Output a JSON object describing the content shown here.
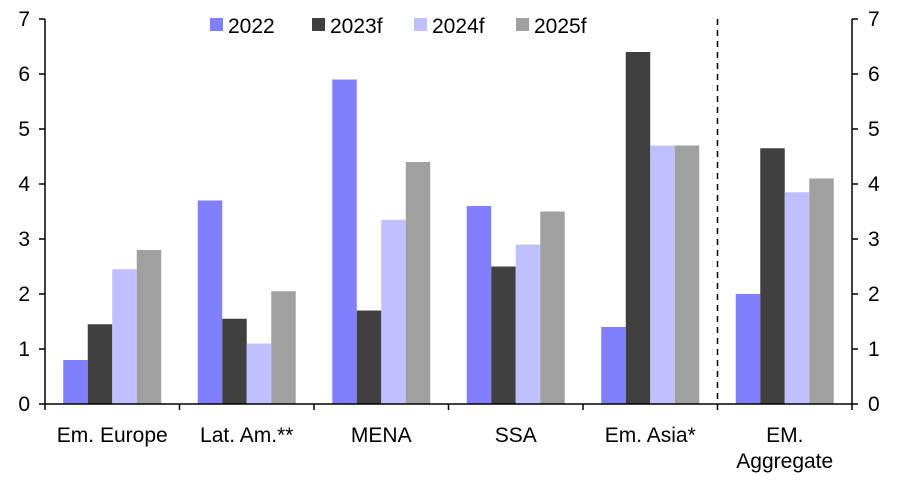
{
  "chart_data": {
    "type": "bar",
    "categories": [
      [
        "Em. Europe"
      ],
      [
        "Lat. Am.**"
      ],
      [
        "MENA"
      ],
      [
        "SSA"
      ],
      [
        "Em. Asia*"
      ],
      [
        "EM.",
        "Aggregate"
      ]
    ],
    "series": [
      {
        "name": "2022",
        "color": "#8080ff",
        "values": [
          0.8,
          3.7,
          5.9,
          3.6,
          1.4,
          2.0
        ]
      },
      {
        "name": "2023f",
        "color": "#404040",
        "values": [
          1.45,
          1.55,
          1.7,
          2.5,
          6.4,
          4.65
        ]
      },
      {
        "name": "2024f",
        "color": "#c0c0ff",
        "values": [
          2.45,
          1.1,
          3.35,
          2.9,
          4.7,
          3.85
        ]
      },
      {
        "name": "2025f",
        "color": "#a0a0a0",
        "values": [
          2.8,
          2.05,
          4.4,
          3.5,
          4.7,
          4.1
        ]
      }
    ],
    "ylim": [
      0,
      7
    ],
    "yticks": [
      0,
      1,
      2,
      3,
      4,
      5,
      6,
      7
    ],
    "y_axes": "left-and-right",
    "legend_position": "top",
    "separator_before_category": 5,
    "grid": false
  }
}
